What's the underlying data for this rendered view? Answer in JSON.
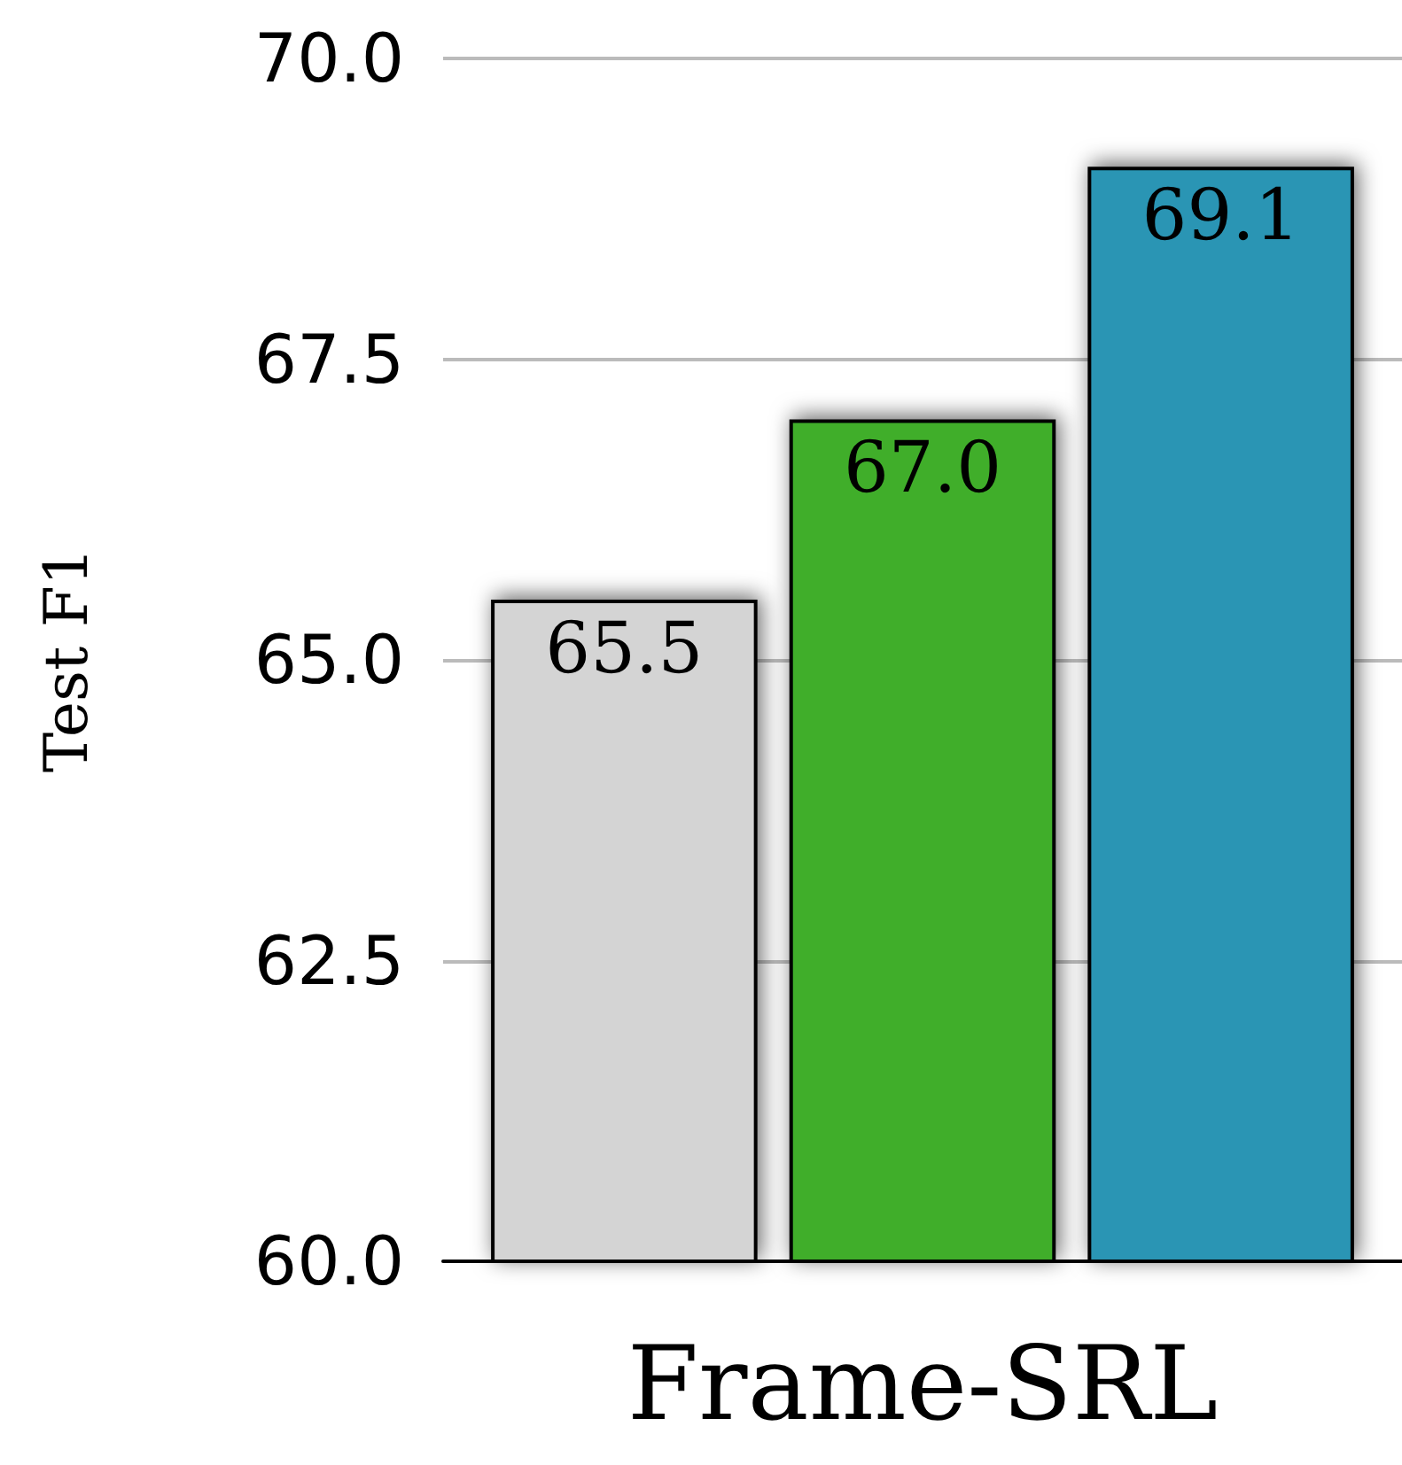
{
  "chart_data": {
    "type": "bar",
    "ylabel": "Test F1",
    "categories": [
      "Frame-SRL"
    ],
    "series": [
      {
        "color": "#d4d4d4",
        "values": [
          65.5
        ],
        "value_labels": [
          "65.5"
        ]
      },
      {
        "color": "#3fae2a",
        "values": [
          67.0
        ],
        "value_labels": [
          "67.0"
        ]
      },
      {
        "color": "#2a95b4",
        "values": [
          69.1
        ],
        "value_labels": [
          "69.1"
        ]
      }
    ],
    "ylim": [
      60,
      70
    ],
    "yticks": [
      {
        "value": 60,
        "label": "60.0"
      },
      {
        "value": 62.5,
        "label": "62.5"
      },
      {
        "value": 65,
        "label": "65.0"
      },
      {
        "value": 67.5,
        "label": "67.5"
      },
      {
        "value": 70,
        "label": "70.0"
      }
    ],
    "grid": "y"
  }
}
